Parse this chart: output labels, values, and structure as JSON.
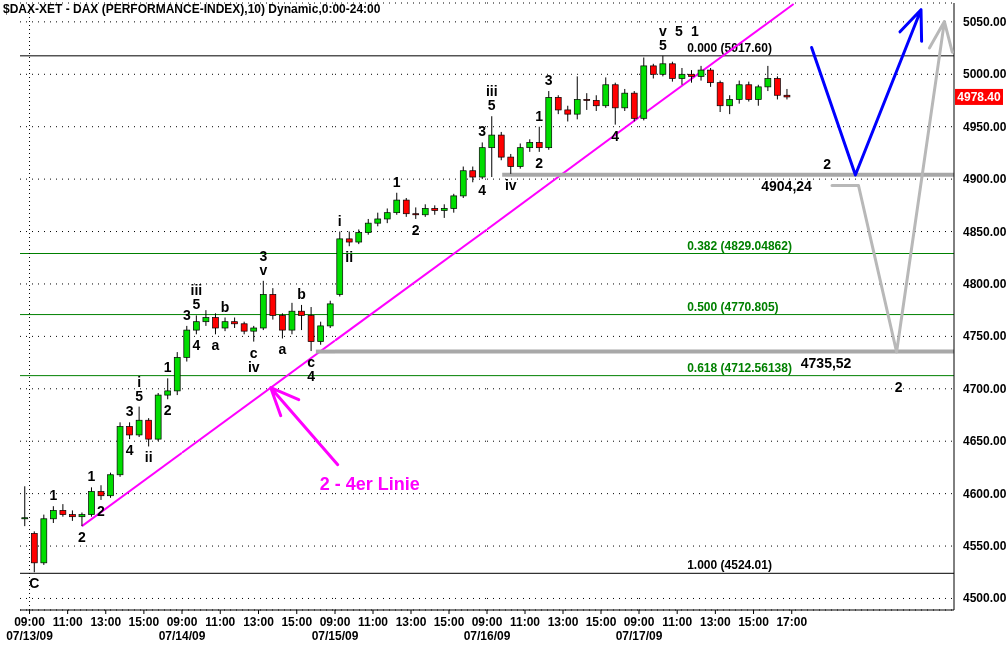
{
  "chart_data": [
    {
      "type": "candlestick",
      "title": "$DAX-XET - DAX (PERFORMANCE-INDEX),10) Dynamic,0:00-24:00",
      "x": [
        8.75,
        9.25,
        9.75,
        10.25,
        10.75,
        11.25,
        11.75,
        12.25,
        12.75,
        13.25,
        13.75,
        14.25,
        14.75,
        15.25,
        15.75,
        16.25,
        16.75
      ],
      "ohlc": [
        [
          4576,
          4607,
          4569,
          4577
        ],
        [
          4562,
          4564,
          4525,
          4534
        ],
        [
          4534,
          4580,
          4532,
          4576
        ],
        [
          4576,
          4588,
          4572,
          4584
        ],
        [
          4584,
          4590,
          4578,
          4580
        ],
        [
          4580,
          4584,
          4574,
          4578
        ],
        [
          4578,
          4582,
          4569,
          4580
        ],
        [
          4580,
          4606,
          4578,
          4602
        ],
        [
          4602,
          4608,
          4594,
          4598
        ],
        [
          4598,
          4620,
          4596,
          4618
        ],
        [
          4618,
          4668,
          4616,
          4664
        ],
        [
          4664,
          4668,
          4652,
          4656
        ],
        [
          4656,
          4683,
          4654,
          4670
        ],
        [
          4670,
          4672,
          4645,
          4652
        ],
        [
          4652,
          4696,
          4650,
          4694
        ],
        [
          4694,
          4710,
          4690,
          4698
        ],
        [
          4698,
          4735,
          4694,
          4730
        ]
      ],
      "colors": [
        "#00dd00",
        "#ff0000",
        "#00dd00",
        "#00dd00",
        "#ff0000",
        "#ff0000",
        "#00dd00",
        "#00dd00",
        "#ff0000",
        "#00dd00",
        "#00dd00",
        "#ff0000",
        "#00dd00",
        "#ff0000",
        "#00dd00",
        "#00dd00",
        "#00dd00"
      ],
      "xlim": [
        8.5,
        17
      ],
      "xticks": [
        {
          "value": 9,
          "label": "09:00\n07/13/09"
        },
        {
          "value": 11,
          "label": "11:00"
        },
        {
          "value": 13,
          "label": "13:00"
        },
        {
          "value": 15,
          "label": "15:00"
        }
      ],
      "ylim": [
        4489,
        5068
      ],
      "yticks": [
        4500,
        4550,
        4600,
        4650,
        4700,
        4750,
        4800,
        4850,
        4900,
        4950,
        5000,
        5050
      ],
      "tick_labels": "x",
      "grid": "y",
      "series": [
        {
          "type": "line",
          "color": "#ff00ff",
          "x": [
            11.75,
            17
          ],
          "values": [
            4569,
            4639
          ]
        }
      ],
      "ref_lines": [
        {
          "axis": "y",
          "value": 5017.6,
          "color": "#000000"
        },
        {
          "axis": "y",
          "value": 4829.04862,
          "color": "#008000"
        },
        {
          "axis": "y",
          "value": 4770.805,
          "color": "#008000"
        },
        {
          "axis": "y",
          "value": 4712.56138,
          "color": "#008000"
        },
        {
          "axis": "y",
          "value": 4524.01,
          "color": "#000000"
        },
        {
          "axis": "x",
          "value": 9,
          "color": "#000000",
          "line_style": "dotted"
        }
      ],
      "annotations": [
        {
          "text": "C",
          "x": 9.25,
          "y": 4525
        },
        {
          "text": "1",
          "x": 10.25,
          "y": 4588
        },
        {
          "text": "2",
          "x": 11.75,
          "y": 4569
        },
        {
          "text": "1",
          "x": 12.25,
          "y": 4606
        },
        {
          "text": "2",
          "x": 12.75,
          "y": 4594
        },
        {
          "text": "3",
          "x": 14.25,
          "y": 4668
        },
        {
          "text": "4",
          "x": 14.25,
          "y": 4652
        },
        {
          "text": "5",
          "x": 14.75,
          "y": 4683
        },
        {
          "text": "i",
          "x": 14.75,
          "y": 4683
        },
        {
          "text": "ii",
          "x": 15.25,
          "y": 4645
        },
        {
          "text": "1",
          "x": 16.25,
          "y": 4710
        },
        {
          "text": "2",
          "x": 16.25,
          "y": 4690
        }
      ]
    },
    {
      "type": "candlestick",
      "x": [
        9.25,
        9.75,
        10.25,
        10.75,
        11.25,
        11.75,
        12.25,
        12.75,
        13.25,
        13.75,
        14.25,
        14.75,
        15.25,
        15.75,
        16.25,
        16.75
      ],
      "ohlc": [
        [
          4730,
          4760,
          4726,
          4756
        ],
        [
          4756,
          4770,
          4752,
          4764
        ],
        [
          4764,
          4775,
          4760,
          4768
        ],
        [
          4768,
          4772,
          4752,
          4758
        ],
        [
          4758,
          4768,
          4755,
          4764
        ],
        [
          4764,
          4768,
          4758,
          4762
        ],
        [
          4762,
          4764,
          4752,
          4755
        ],
        [
          4755,
          4760,
          4745,
          4758
        ],
        [
          4758,
          4803,
          4756,
          4790
        ],
        [
          4790,
          4796,
          4766,
          4770
        ],
        [
          4770,
          4772,
          4748,
          4756
        ],
        [
          4756,
          4782,
          4752,
          4774
        ],
        [
          4774,
          4780,
          4756,
          4770
        ],
        [
          4770,
          4778,
          4736,
          4745
        ],
        [
          4745,
          4764,
          4742,
          4760
        ],
        [
          4760,
          4784,
          4758,
          4781
        ]
      ],
      "colors": [
        "#00dd00",
        "#00dd00",
        "#00dd00",
        "#ff0000",
        "#00dd00",
        "#ff0000",
        "#ff0000",
        "#00dd00",
        "#00dd00",
        "#ff0000",
        "#ff0000",
        "#00dd00",
        "#ff0000",
        "#ff0000",
        "#00dd00",
        "#00dd00"
      ],
      "xlim": [
        9,
        17
      ],
      "xticks": [
        {
          "value": 9,
          "label": "09:00\n07/14/09"
        },
        {
          "value": 11,
          "label": "11:00"
        },
        {
          "value": 13,
          "label": "13:00"
        },
        {
          "value": 15,
          "label": "15:00"
        }
      ],
      "ylim": [
        4489,
        5068
      ],
      "yticks": [
        4500,
        4550,
        4600,
        4650,
        4700,
        4750,
        4800,
        4850,
        4900,
        4950,
        5000,
        5050
      ],
      "tick_labels": "x",
      "grid": "y",
      "series": [
        {
          "type": "line",
          "name": "2 - 4er Linie",
          "color": "#ff00ff",
          "x": [
            9,
            17
          ],
          "values": [
            4639,
            4746
          ]
        },
        {
          "type": "line",
          "color": "#a8a8a8",
          "x": [
            16,
            17
          ],
          "values": [
            4735.52,
            4735.52
          ]
        }
      ],
      "ref_lines": [
        {
          "axis": "y",
          "value": 5017.6,
          "color": "#000000"
        },
        {
          "axis": "y",
          "value": 4829.04862,
          "color": "#008000"
        },
        {
          "axis": "y",
          "value": 4770.805,
          "color": "#008000"
        },
        {
          "axis": "y",
          "value": 4712.56138,
          "color": "#008000"
        },
        {
          "axis": "y",
          "value": 4524.01,
          "color": "#000000"
        }
      ],
      "annotations": [
        {
          "text": "3",
          "x": 9.25,
          "y": 4760
        },
        {
          "text": "4",
          "x": 9.75,
          "y": 4752
        },
        {
          "text": "5",
          "x": 9.75,
          "y": 4770
        },
        {
          "text": "iii",
          "x": 9.75,
          "y": 4770
        },
        {
          "text": "a",
          "x": 10.75,
          "y": 4752
        },
        {
          "text": "b",
          "x": 11.25,
          "y": 4768
        },
        {
          "text": "c",
          "x": 12.75,
          "y": 4745
        },
        {
          "text": "iv",
          "x": 12.75,
          "y": 4745
        },
        {
          "text": "v",
          "x": 13.25,
          "y": 4803
        },
        {
          "text": "3",
          "x": 13.25,
          "y": 4803
        },
        {
          "text": "a",
          "x": 14.25,
          "y": 4748
        },
        {
          "text": "b",
          "x": 15.25,
          "y": 4780
        },
        {
          "text": "c",
          "x": 15.75,
          "y": 4736
        },
        {
          "text": "4",
          "x": 15.75,
          "y": 4736
        }
      ]
    },
    {
      "type": "candlestick",
      "x": [
        9.25,
        9.75,
        10.25,
        10.75,
        11.25,
        11.75,
        12.25,
        12.75,
        13.25,
        13.75,
        14.25,
        14.75,
        15.25,
        15.75,
        16.25,
        16.75
      ],
      "ohlc": [
        [
          4790,
          4850,
          4788,
          4843
        ],
        [
          4843,
          4850,
          4836,
          4840
        ],
        [
          4840,
          4852,
          4838,
          4849
        ],
        [
          4849,
          4862,
          4847,
          4858
        ],
        [
          4858,
          4868,
          4855,
          4862
        ],
        [
          4862,
          4872,
          4858,
          4868
        ],
        [
          4868,
          4887,
          4866,
          4880
        ],
        [
          4880,
          4882,
          4864,
          4867
        ],
        [
          4867,
          4873,
          4862,
          4866
        ],
        [
          4866,
          4876,
          4864,
          4872
        ],
        [
          4872,
          4875,
          4866,
          4870
        ],
        [
          4870,
          4876,
          4863,
          4872
        ],
        [
          4872,
          4886,
          4868,
          4884
        ],
        [
          4884,
          4912,
          4882,
          4908
        ],
        [
          4908,
          4912,
          4897,
          4902
        ],
        [
          4902,
          4935,
          4900,
          4930
        ]
      ],
      "colors": [
        "#00dd00",
        "#ff0000",
        "#00dd00",
        "#00dd00",
        "#00dd00",
        "#00dd00",
        "#00dd00",
        "#ff0000",
        "#ff0000",
        "#00dd00",
        "#ff0000",
        "#00dd00",
        "#00dd00",
        "#00dd00",
        "#ff0000",
        "#00dd00"
      ],
      "xlim": [
        9,
        17
      ],
      "xticks": [
        {
          "value": 9,
          "label": "09:00\n07/15/09"
        },
        {
          "value": 11,
          "label": "11:00"
        },
        {
          "value": 13,
          "label": "13:00"
        },
        {
          "value": 15,
          "label": "15:00"
        }
      ],
      "ylim": [
        4489,
        5068
      ],
      "yticks": [
        4500,
        4550,
        4600,
        4650,
        4700,
        4750,
        4800,
        4850,
        4900,
        4950,
        5000,
        5050
      ],
      "tick_labels": "x",
      "grid": "y",
      "series": [
        {
          "type": "line",
          "color": "#ff00ff",
          "x": [
            9,
            17
          ],
          "values": [
            4746,
            4852
          ]
        },
        {
          "type": "line",
          "color": "#a8a8a8",
          "x": [
            9,
            17
          ],
          "values": [
            4735.52,
            4735.52
          ]
        }
      ],
      "ref_lines": [
        {
          "axis": "y",
          "value": 5017.6,
          "color": "#000000"
        },
        {
          "axis": "y",
          "value": 4829.04862,
          "color": "#008000"
        },
        {
          "axis": "y",
          "value": 4770.805,
          "color": "#008000"
        },
        {
          "axis": "y",
          "value": 4712.56138,
          "color": "#008000"
        },
        {
          "axis": "y",
          "value": 4524.01,
          "color": "#000000"
        }
      ],
      "annotations": [
        {
          "text": "i",
          "x": 9.25,
          "y": 4850
        },
        {
          "text": "ii",
          "x": 9.75,
          "y": 4836
        },
        {
          "text": "1",
          "x": 12.25,
          "y": 4887
        },
        {
          "text": "2",
          "x": 13.25,
          "y": 4862
        },
        {
          "text": "3",
          "x": 16.75,
          "y": 4935
        },
        {
          "text": "4",
          "x": 16.75,
          "y": 4900
        }
      ]
    },
    {
      "type": "candlestick",
      "x": [
        9.25,
        9.75,
        10.25,
        10.75,
        11.25,
        11.75,
        12.25,
        12.75,
        13.25,
        13.75,
        14.25,
        14.75,
        15.25,
        15.75,
        16.25,
        16.75
      ],
      "ohlc": [
        [
          4930,
          4960,
          4902,
          4942
        ],
        [
          4942,
          4945,
          4918,
          4921
        ],
        [
          4921,
          4924,
          4905,
          4912
        ],
        [
          4912,
          4934,
          4910,
          4930
        ],
        [
          4930,
          4938,
          4926,
          4935
        ],
        [
          4935,
          4950,
          4926,
          4930
        ],
        [
          4930,
          4984,
          4928,
          4978
        ],
        [
          4978,
          4980,
          4962,
          4966
        ],
        [
          4966,
          4970,
          4955,
          4962
        ],
        [
          4962,
          4998,
          4957,
          4976
        ],
        [
          4976,
          4982,
          4966,
          4975
        ],
        [
          4975,
          4980,
          4965,
          4970
        ],
        [
          4970,
          4997,
          4968,
          4990
        ],
        [
          4990,
          4992,
          4952,
          4968
        ],
        [
          4968,
          4986,
          4965,
          4982
        ],
        [
          4982,
          4984,
          4955,
          4958
        ]
      ],
      "colors": [
        "#00dd00",
        "#ff0000",
        "#ff0000",
        "#00dd00",
        "#00dd00",
        "#ff0000",
        "#00dd00",
        "#ff0000",
        "#ff0000",
        "#00dd00",
        "#ff0000",
        "#ff0000",
        "#00dd00",
        "#ff0000",
        "#00dd00",
        "#ff0000"
      ],
      "xlim": [
        9,
        17
      ],
      "xticks": [
        {
          "value": 9,
          "label": "09:00\n07/16/09"
        },
        {
          "value": 11,
          "label": "11:00"
        },
        {
          "value": 13,
          "label": "13:00"
        },
        {
          "value": 15,
          "label": "15:00"
        }
      ],
      "ylim": [
        4489,
        5068
      ],
      "yticks": [
        4500,
        4550,
        4600,
        4650,
        4700,
        4750,
        4800,
        4850,
        4900,
        4950,
        5000,
        5050
      ],
      "tick_labels": "x",
      "grid": "y",
      "series": [
        {
          "type": "line",
          "color": "#ff00ff",
          "x": [
            9,
            17
          ],
          "values": [
            4852,
            4959
          ]
        },
        {
          "type": "line",
          "color": "#a8a8a8",
          "x": [
            9,
            17
          ],
          "values": [
            4735.52,
            4735.52
          ]
        },
        {
          "type": "line",
          "color": "#a8a8a8",
          "x": [
            9.8,
            17
          ],
          "values": [
            4904.24,
            4904.24
          ]
        }
      ],
      "ref_lines": [
        {
          "axis": "y",
          "value": 5017.6,
          "color": "#000000"
        },
        {
          "axis": "y",
          "value": 4829.04862,
          "color": "#008000"
        },
        {
          "axis": "y",
          "value": 4770.805,
          "color": "#008000"
        },
        {
          "axis": "y",
          "value": 4712.56138,
          "color": "#008000"
        },
        {
          "axis": "y",
          "value": 4524.01,
          "color": "#000000"
        }
      ],
      "annotations": [
        {
          "text": "5",
          "x": 9.25,
          "y": 4960
        },
        {
          "text": "iii",
          "x": 9.25,
          "y": 4960
        },
        {
          "text": "iv",
          "x": 10.25,
          "y": 4905
        },
        {
          "text": "1",
          "x": 11.75,
          "y": 4950
        },
        {
          "text": "2",
          "x": 11.75,
          "y": 4926
        },
        {
          "text": "3",
          "x": 12.25,
          "y": 4984
        },
        {
          "text": "4",
          "x": 15.75,
          "y": 4952
        }
      ]
    },
    {
      "type": "candlestick",
      "x": [
        9.25,
        9.75,
        10.25,
        10.75,
        11.25,
        11.75,
        12.25,
        12.75,
        13.25,
        13.75,
        14.25,
        14.75,
        15.25,
        15.75,
        16.25,
        16.75
      ],
      "ohlc": [
        [
          4958,
          5016,
          4956,
          5008
        ],
        [
          5008,
          5010,
          4996,
          5000
        ],
        [
          5000,
          5017.6,
          4998,
          5010
        ],
        [
          5010,
          5012,
          4993,
          4996
        ],
        [
          4996,
          5006,
          4990,
          5000
        ],
        [
          5000,
          5004,
          4992,
          4998
        ],
        [
          4998,
          5008,
          4994,
          5004
        ],
        [
          5004,
          5006,
          4988,
          4992
        ],
        [
          4992,
          4994,
          4964,
          4970
        ],
        [
          4970,
          4980,
          4962,
          4976
        ],
        [
          4976,
          4994,
          4972,
          4990
        ],
        [
          4990,
          4993,
          4974,
          4976
        ],
        [
          4976,
          4990,
          4970,
          4988
        ],
        [
          4988,
          5008,
          4984,
          4996
        ],
        [
          4996,
          4998,
          4976,
          4980
        ],
        [
          4980,
          4986,
          4976,
          4978.4
        ]
      ],
      "colors": [
        "#00dd00",
        "#ff0000",
        "#00dd00",
        "#ff0000",
        "#00dd00",
        "#ff0000",
        "#00dd00",
        "#ff0000",
        "#ff0000",
        "#00dd00",
        "#00dd00",
        "#ff0000",
        "#00dd00",
        "#00dd00",
        "#ff0000",
        "#ff0000"
      ],
      "xlim": [
        9,
        25.5
      ],
      "xticks": [
        {
          "value": 9,
          "label": "09:00\n07/17/09"
        },
        {
          "value": 11,
          "label": "11:00"
        },
        {
          "value": 13,
          "label": "13:00"
        },
        {
          "value": 15,
          "label": "15:00"
        },
        {
          "value": 17,
          "label": "17:00"
        }
      ],
      "ylim": [
        4489,
        5068
      ],
      "yticks": [
        {
          "value": 4500,
          "label": "4500.00"
        },
        {
          "value": 4550,
          "label": "4550.00"
        },
        {
          "value": 4600,
          "label": "4600.00"
        },
        {
          "value": 4650,
          "label": "4650.00"
        },
        {
          "value": 4700,
          "label": "4700.00"
        },
        {
          "value": 4750,
          "label": "4750.00"
        },
        {
          "value": 4800,
          "label": "4800.00"
        },
        {
          "value": 4850,
          "label": "4850.00"
        },
        {
          "value": 4900,
          "label": "4900.00"
        },
        {
          "value": 4950,
          "label": "4950.00"
        },
        {
          "value": 5000,
          "label": "5000.00"
        },
        {
          "value": 5050,
          "label": "5050.00"
        }
      ],
      "grid": "y",
      "series": [
        {
          "type": "line",
          "color": "#ff00ff",
          "x": [
            9,
            17.1
          ],
          "values": [
            4959,
            5067
          ]
        },
        {
          "type": "line",
          "color": "#a8a8a8",
          "x": [
            9,
            25.5
          ],
          "values": [
            4904.24,
            4904.24
          ]
        },
        {
          "type": "line",
          "color": "#a8a8a8",
          "x": [
            9,
            25.5
          ],
          "values": [
            4735.52,
            4735.52
          ]
        }
      ],
      "ref_lines": [
        {
          "axis": "y",
          "value": 5017.6,
          "label": "0.000 (5017.60)",
          "color": "#000000"
        },
        {
          "axis": "y",
          "value": 4829.04862,
          "label": "0.382 (4829.04862)",
          "color": "#008000"
        },
        {
          "axis": "y",
          "value": 4770.805,
          "label": "0.500 (4770.805)",
          "color": "#008000"
        },
        {
          "axis": "y",
          "value": 4712.56138,
          "label": "0.618 (4712.56138)",
          "color": "#008000"
        },
        {
          "axis": "y",
          "value": 4524.01,
          "label": "1.000 (4524.01)",
          "color": "#000000"
        }
      ],
      "annotations": [
        {
          "text": "5",
          "x": 10.25,
          "y": 5017.6
        },
        {
          "text": "v",
          "x": 10.25,
          "y": 5017.6
        },
        {
          "text": "5",
          "x": 10.25,
          "y": 5017.6
        },
        {
          "text": "1",
          "x": 10.25,
          "y": 5017.6
        },
        {
          "text": "4904,24",
          "x": 16.73,
          "y": 4904.24
        },
        {
          "text": "2",
          "x": 18.85,
          "y": 4904.24
        },
        {
          "text": "4735,52",
          "x": 18.8,
          "y": 4735.52
        },
        {
          "text": "2",
          "x": 22.6,
          "y": 4712.56138
        },
        "4978.40"
      ]
    }
  ]
}
